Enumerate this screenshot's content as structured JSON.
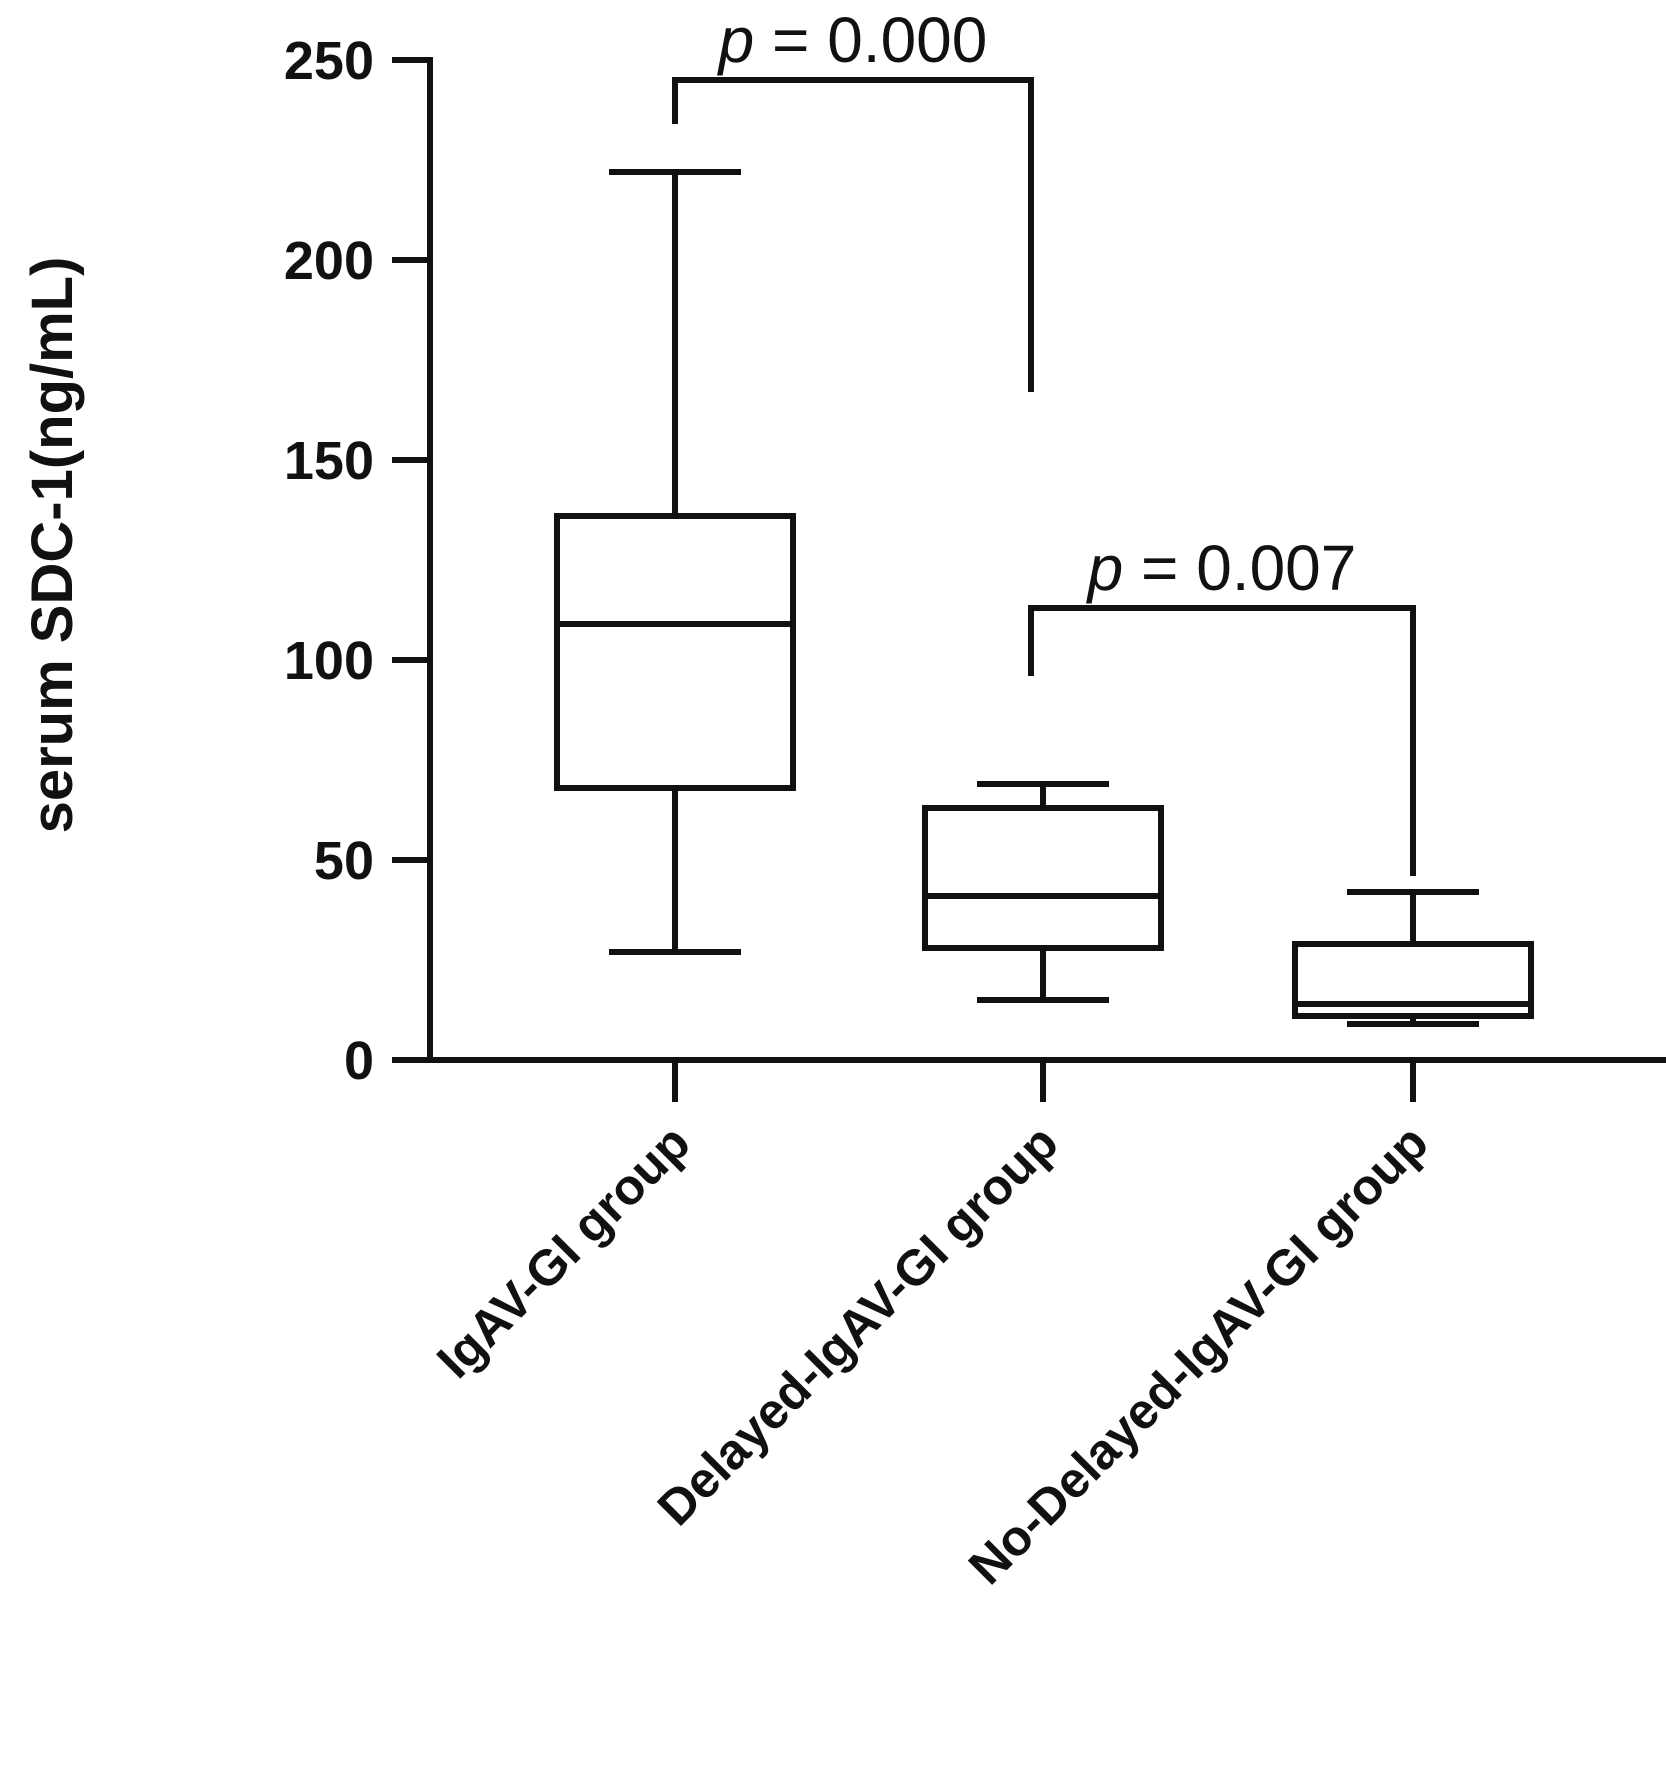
{
  "chart_data": {
    "type": "box",
    "ylabel": "serum SDC-1(ng/mL)",
    "xlabel": "",
    "ylim": [
      0,
      250
    ],
    "yticks": [
      0,
      50,
      100,
      150,
      200,
      250
    ],
    "ytick_labels": [
      "0",
      "50",
      "100",
      "150",
      "200",
      "250"
    ],
    "categories": [
      "IgAV-GI group",
      "Delayed-IgAV-GI group",
      "No-Delayed-IgAV-GI group"
    ],
    "boxes": [
      {
        "category": "IgAV-GI group",
        "min": 27,
        "q1": 68,
        "median": 109,
        "q3": 136,
        "max": 222
      },
      {
        "category": "Delayed-IgAV-GI group",
        "min": 15,
        "q1": 28,
        "median": 41,
        "q3": 63,
        "max": 69
      },
      {
        "category": "No-Delayed-IgAV-GI group",
        "min": 9,
        "q1": 11,
        "median": 14,
        "q3": 29,
        "max": 42
      }
    ],
    "comparisons": [
      {
        "from": "IgAV-GI group",
        "to": "Delayed-IgAV-GI group",
        "bracket_y": 245,
        "left_end": 234,
        "right_end": 167,
        "p_symbol": "p",
        "p_rest": " = 0.000"
      },
      {
        "from": "Delayed-IgAV-GI group",
        "to": "No-Delayed-IgAV-GI group",
        "bracket_y": 113,
        "left_end": 96,
        "right_end": 46,
        "p_symbol": "p",
        "p_rest": " = 0.007"
      }
    ]
  }
}
